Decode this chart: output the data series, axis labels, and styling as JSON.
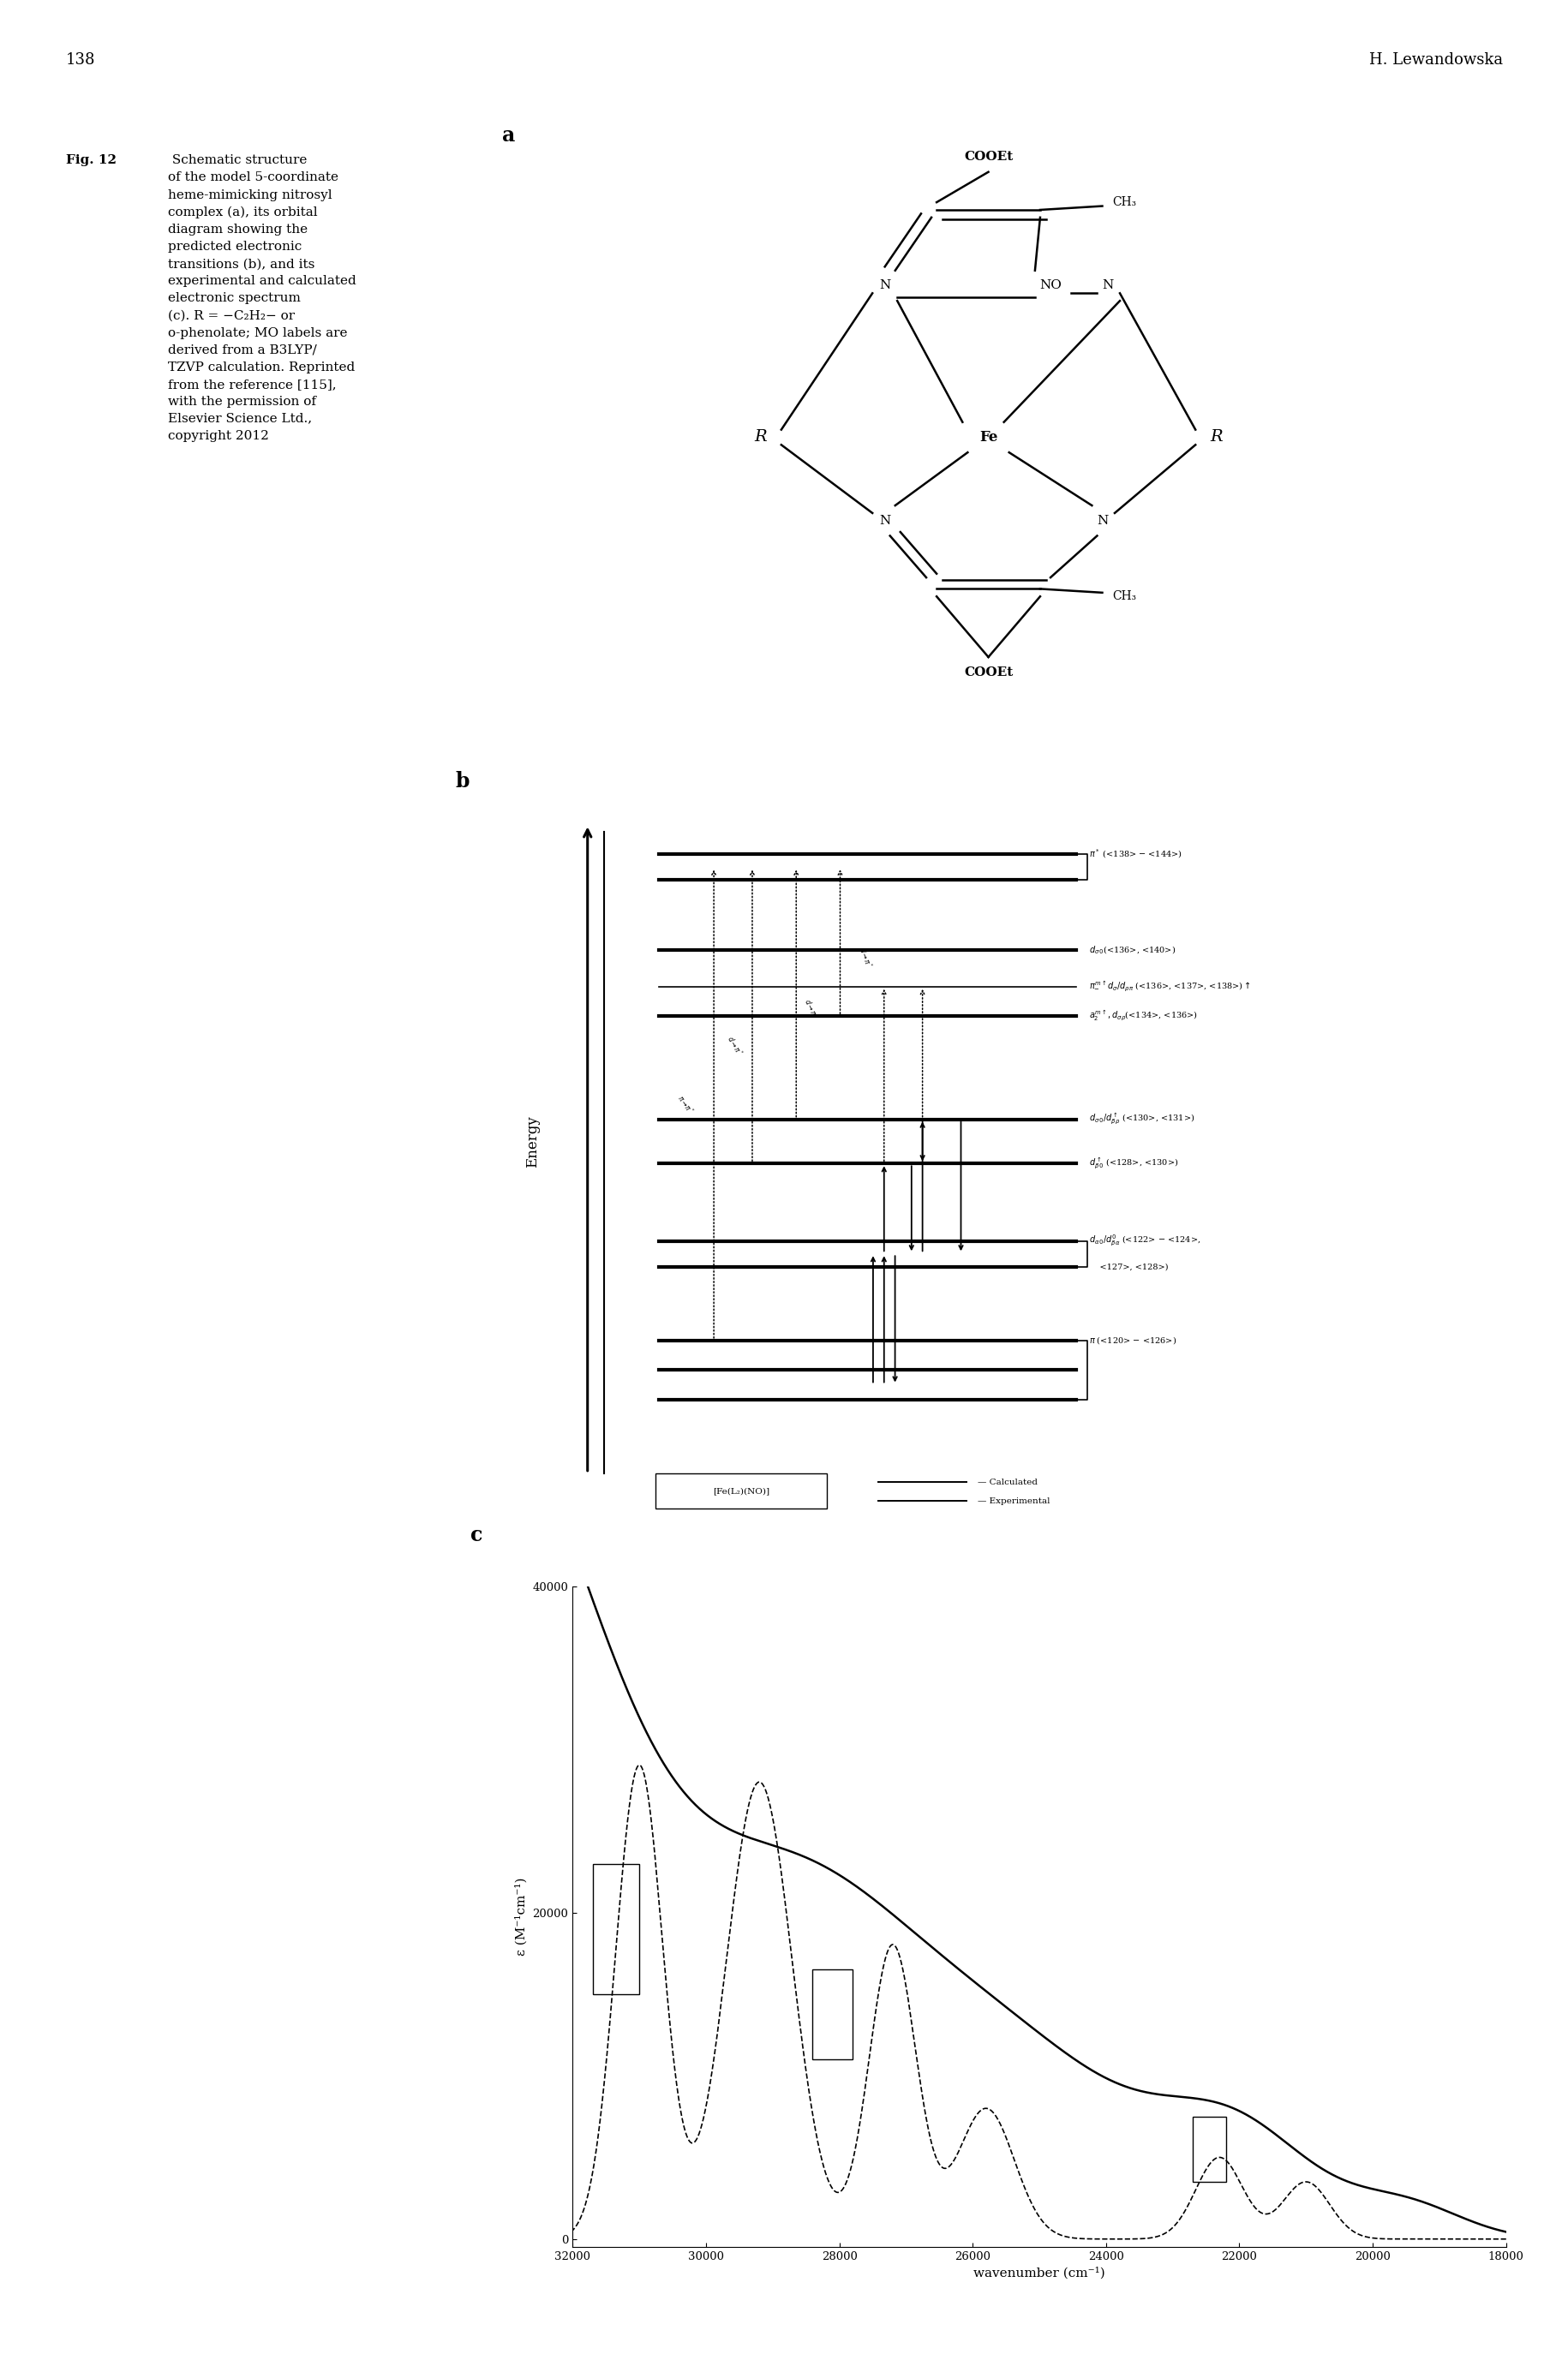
{
  "page_number": "138",
  "header_right": "H. Lewandowska",
  "background_color": "#ffffff",
  "caption_bold": "Fig. 12",
  "caption_rest": " Schematic structure\nof the model 5-coordinate\nheme-mimicking nitrosyl\ncomplex (a), its orbital\ndiagram showing the\npredicted electronic\ntransitions (b), and its\nexperimental and calculated\nelectronic spectrum\n(c). R = −C₂H₂− or\no-phenolate; MO labels are\nderived from a B3LYP/\nTZVP calculation. Reprinted\nfrom the reference [115],\nwith the permission of\nElsevier Science Ltd.,\ncopyright 2012",
  "spectrum_xlabel": "wavenumber (cm⁻¹)",
  "spectrum_ylabel": "ε (M⁻¹cm⁻¹)"
}
